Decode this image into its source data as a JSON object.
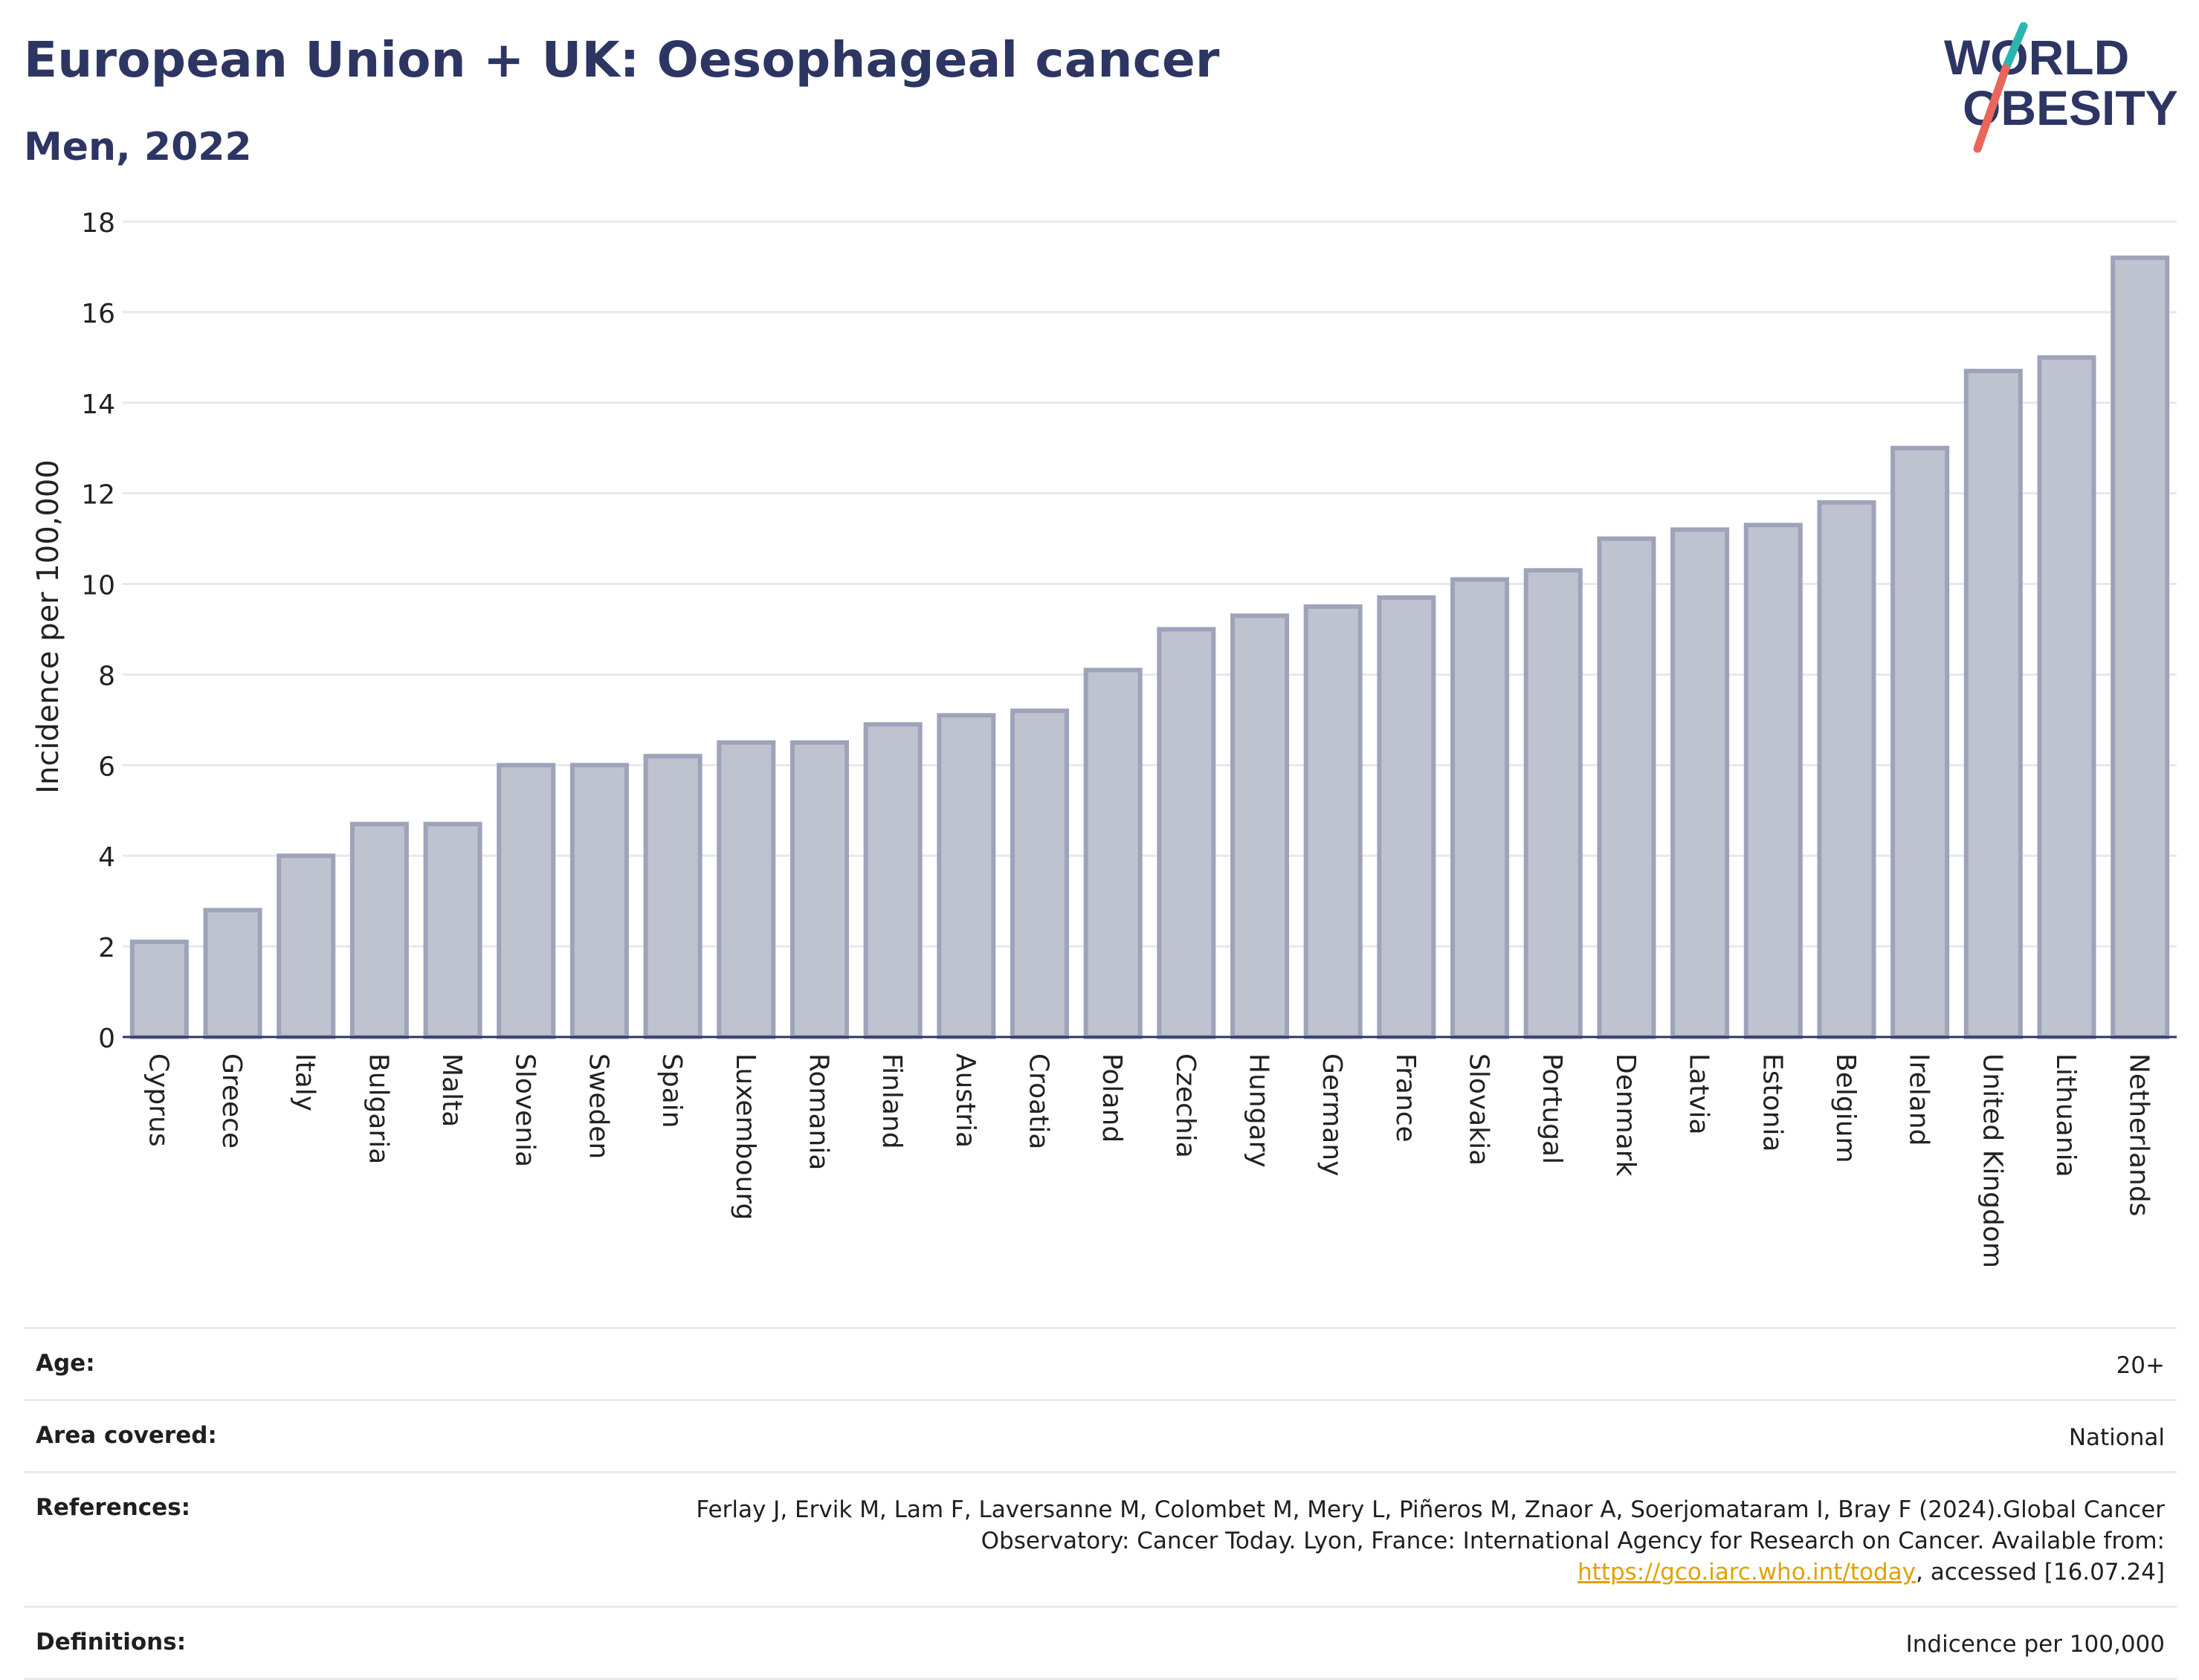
{
  "header": {
    "title": "European Union + UK: Oesophageal cancer",
    "subtitle": "Men, 2022"
  },
  "logo": {
    "line1": "WORLD",
    "line2": "OBESITY"
  },
  "chart_data": {
    "type": "bar",
    "ylabel": "Incidence per 100,000",
    "ylim": [
      0,
      18
    ],
    "yticks": [
      0,
      2,
      4,
      6,
      8,
      10,
      12,
      14,
      16,
      18
    ],
    "grid": true,
    "bar_color": "#bfc3d0",
    "bar_edge_color": "#9ea3ba",
    "categories": [
      "Cyprus",
      "Greece",
      "Italy",
      "Bulgaria",
      "Malta",
      "Slovenia",
      "Sweden",
      "Spain",
      "Luxembourg",
      "Romania",
      "Finland",
      "Austria",
      "Croatia",
      "Poland",
      "Czechia",
      "Hungary",
      "Germany",
      "France",
      "Slovakia",
      "Portugal",
      "Denmark",
      "Latvia",
      "Estonia",
      "Belgium",
      "Ireland",
      "United Kingdom",
      "Lithuania",
      "Netherlands"
    ],
    "values": [
      2.1,
      2.8,
      4.0,
      4.7,
      4.7,
      6.0,
      6.0,
      6.2,
      6.5,
      6.5,
      6.9,
      7.1,
      7.2,
      8.1,
      9.0,
      9.3,
      9.5,
      9.7,
      10.1,
      10.3,
      11.0,
      11.2,
      11.3,
      11.8,
      13.0,
      14.7,
      15.0,
      17.2
    ]
  },
  "info": {
    "age_label": "Age:",
    "age_value": "20+",
    "area_label": "Area covered:",
    "area_value": "National",
    "references_label": "References:",
    "references_text_1": "Ferlay J, Ervik M, Lam F, Laversanne M, Colombet M, Mery L, Piñeros M, Znaor A, Soerjomataram I, Bray F (2024).Global Cancer Observatory: Cancer Today. Lyon, France: International Agency for Research on Cancer. Available from: ",
    "references_link": "https://gco.iarc.who.int/today",
    "references_text_2": ", accessed [16.07.24]",
    "definitions_label": "Definitions:",
    "definitions_value": "Indicence per 100,000"
  }
}
